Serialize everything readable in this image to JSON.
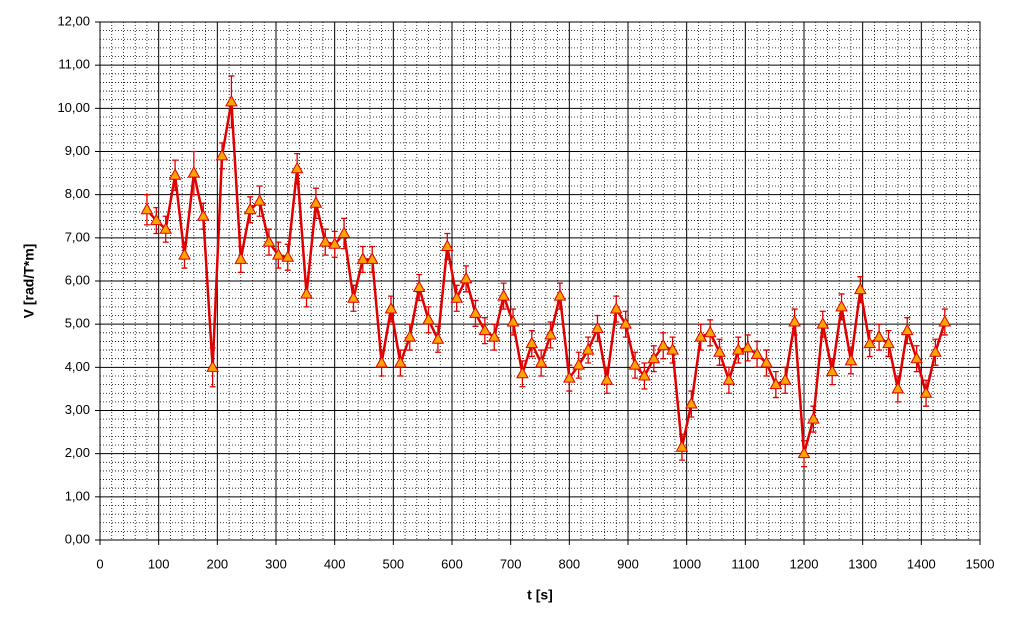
{
  "chart_data": {
    "type": "line",
    "x_label": "t [s]",
    "y_label": "V [rad/T*m]",
    "xlim": [
      0,
      1500
    ],
    "xticks": [
      0,
      100,
      200,
      300,
      400,
      500,
      600,
      700,
      800,
      900,
      1000,
      1100,
      1200,
      1300,
      1400,
      1500
    ],
    "ylim": [
      0,
      12
    ],
    "yticks": [
      {
        "value": 0,
        "label": "0,00"
      },
      {
        "value": 1,
        "label": "1,00"
      },
      {
        "value": 2,
        "label": "2,00"
      },
      {
        "value": 3,
        "label": "3,00"
      },
      {
        "value": 4,
        "label": "4,00"
      },
      {
        "value": 5,
        "label": "5,00"
      },
      {
        "value": 6,
        "label": "6,00"
      },
      {
        "value": 7,
        "label": "7,00"
      },
      {
        "value": 8,
        "label": "8,00"
      },
      {
        "value": 9,
        "label": "9,00"
      },
      {
        "value": 10,
        "label": "10,00"
      },
      {
        "value": 11,
        "label": "11,00"
      },
      {
        "value": 12,
        "label": "12,00"
      }
    ],
    "grid": true,
    "x_minor_ticks": [
      20,
      40,
      60,
      80,
      120,
      140,
      160,
      180,
      220,
      240,
      260,
      280,
      320,
      340,
      360,
      380,
      420,
      440,
      460,
      480,
      520,
      540,
      560,
      580,
      620,
      640,
      660,
      680,
      720,
      740,
      760,
      780,
      820,
      840,
      860,
      880,
      920,
      940,
      960,
      980,
      1020,
      1040,
      1060,
      1080,
      1120,
      1140,
      1160,
      1180,
      1220,
      1240,
      1260,
      1280,
      1320,
      1340,
      1360,
      1380,
      1420,
      1440,
      1460,
      1480
    ],
    "y_minor_ticks": [
      0.2,
      0.4,
      0.6,
      0.8,
      1.2,
      1.4,
      1.6,
      1.8,
      2.2,
      2.4,
      2.6,
      2.8,
      3.2,
      3.4,
      3.6,
      3.8,
      4.2,
      4.4,
      4.6,
      4.8,
      5.2,
      5.4,
      5.6,
      5.8,
      6.2,
      6.4,
      6.6,
      6.8,
      7.2,
      7.4,
      7.6,
      7.8,
      8.2,
      8.4,
      8.6,
      8.8,
      9.2,
      9.4,
      9.6,
      9.8,
      10.2,
      10.4,
      10.6,
      10.8,
      11.2,
      11.4,
      11.6,
      11.8
    ],
    "series": [
      {
        "color": "#e00000",
        "marker_color": "#ffa500",
        "x": [
          80,
          96,
          112,
          128,
          144,
          160,
          176,
          192,
          208,
          224,
          240,
          256,
          272,
          288,
          304,
          320,
          336,
          352,
          368,
          384,
          400,
          416,
          432,
          448,
          464,
          480,
          496,
          512,
          528,
          544,
          560,
          576,
          592,
          608,
          624,
          640,
          656,
          672,
          688,
          704,
          720,
          736,
          752,
          768,
          784,
          800,
          816,
          832,
          848,
          864,
          880,
          896,
          912,
          928,
          944,
          960,
          976,
          992,
          1008,
          1024,
          1040,
          1056,
          1072,
          1088,
          1104,
          1120,
          1136,
          1152,
          1168,
          1184,
          1200,
          1216,
          1232,
          1248,
          1264,
          1280,
          1296,
          1312,
          1328,
          1344,
          1360,
          1376,
          1392,
          1408,
          1424,
          1440
        ],
        "values": [
          7.65,
          7.4,
          7.2,
          8.45,
          6.6,
          8.5,
          7.5,
          4.0,
          8.9,
          10.15,
          6.5,
          7.65,
          7.85,
          6.9,
          6.6,
          6.55,
          8.6,
          5.7,
          7.8,
          6.9,
          6.85,
          7.1,
          5.6,
          6.5,
          6.5,
          4.1,
          5.35,
          4.1,
          4.7,
          5.85,
          5.1,
          4.65,
          6.8,
          5.6,
          6.05,
          5.25,
          4.85,
          4.7,
          5.65,
          5.05,
          3.85,
          4.55,
          4.1,
          4.75,
          5.65,
          3.75,
          4.05,
          4.4,
          4.9,
          3.7,
          5.35,
          5.0,
          4.05,
          3.8,
          4.2,
          4.5,
          4.4,
          2.15,
          3.15,
          4.7,
          4.8,
          4.35,
          3.7,
          4.4,
          4.45,
          4.3,
          4.1,
          3.6,
          3.7,
          5.05,
          2.0,
          2.8,
          5.0,
          3.9,
          5.4,
          4.15,
          5.8,
          4.55,
          4.7,
          4.55,
          3.5,
          4.85,
          4.2,
          3.4,
          4.35,
          5.05
        ],
        "errors": [
          0.35,
          0.3,
          0.3,
          0.35,
          0.3,
          0.5,
          0.3,
          0.45,
          0.3,
          0.6,
          0.3,
          0.3,
          0.35,
          0.3,
          0.3,
          0.3,
          0.35,
          0.3,
          0.35,
          0.3,
          0.3,
          0.35,
          0.3,
          0.3,
          0.3,
          0.3,
          0.3,
          0.3,
          0.3,
          0.3,
          0.3,
          0.3,
          0.3,
          0.3,
          0.3,
          0.3,
          0.3,
          0.3,
          0.3,
          0.3,
          0.3,
          0.3,
          0.3,
          0.3,
          0.3,
          0.3,
          0.3,
          0.3,
          0.3,
          0.3,
          0.3,
          0.3,
          0.3,
          0.3,
          0.3,
          0.3,
          0.3,
          0.3,
          0.3,
          0.3,
          0.3,
          0.3,
          0.3,
          0.3,
          0.3,
          0.3,
          0.3,
          0.3,
          0.3,
          0.3,
          0.3,
          0.3,
          0.3,
          0.3,
          0.3,
          0.3,
          0.3,
          0.3,
          0.3,
          0.3,
          0.3,
          0.3,
          0.3,
          0.3,
          0.3,
          0.3
        ]
      }
    ]
  }
}
